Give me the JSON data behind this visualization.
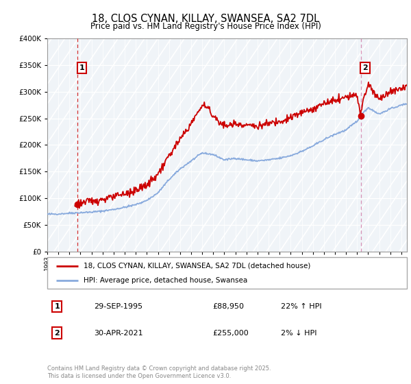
{
  "title": "18, CLOS CYNAN, KILLAY, SWANSEA, SA2 7DL",
  "subtitle": "Price paid vs. HM Land Registry's House Price Index (HPI)",
  "legend_line1": "18, CLOS CYNAN, KILLAY, SWANSEA, SA2 7DL (detached house)",
  "legend_line2": "HPI: Average price, detached house, Swansea",
  "annotation1_label": "1",
  "annotation1_date": "29-SEP-1995",
  "annotation1_price": "£88,950",
  "annotation1_hpi": "22% ↑ HPI",
  "annotation2_label": "2",
  "annotation2_date": "30-APR-2021",
  "annotation2_price": "£255,000",
  "annotation2_hpi": "2% ↓ HPI",
  "copyright": "Contains HM Land Registry data © Crown copyright and database right 2025.\nThis data is licensed under the Open Government Licence v3.0.",
  "ylim": [
    0,
    400000
  ],
  "yticks": [
    0,
    50000,
    100000,
    150000,
    200000,
    250000,
    300000,
    350000,
    400000
  ],
  "price_color": "#cc0000",
  "hpi_color": "#88aadd",
  "background_color": "#ffffff",
  "sale1_x": 1995.75,
  "sale1_y": 88950,
  "sale2_x": 2021.33,
  "sale2_y": 255000,
  "xmin": 1993.0,
  "xmax": 2025.5,
  "hpi_start_year": 1993.0,
  "price_start_year": 1995.5
}
